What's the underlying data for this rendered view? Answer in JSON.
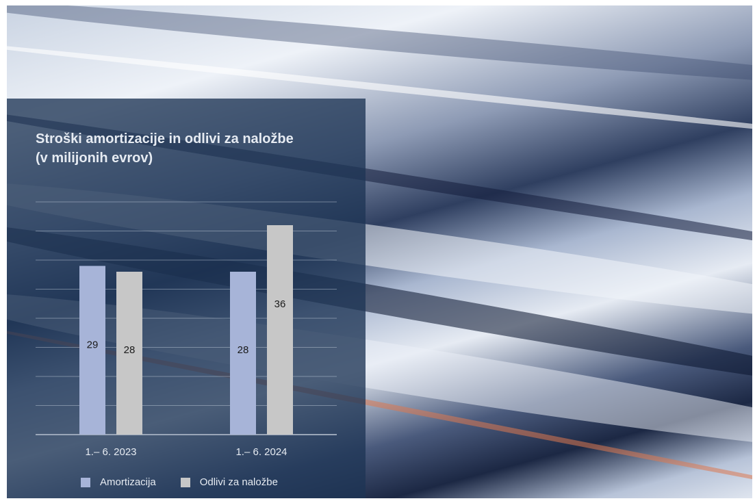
{
  "chart_data": {
    "type": "bar",
    "title": "Stroški amortizacije in odlivi za naložbe",
    "subtitle": "(v milijonih evrov)",
    "categories": [
      "1.– 6. 2023",
      "1.– 6. 2024"
    ],
    "series": [
      {
        "name": "Amortizacija",
        "values": [
          29,
          28
        ],
        "data_labels": [
          "29",
          "28"
        ],
        "color": "#a7b4d8"
      },
      {
        "name": "Odlivi za naložbe",
        "values": [
          28,
          36
        ],
        "data_labels": [
          "28",
          "36"
        ],
        "color": "#c7c7c7"
      }
    ],
    "ylim": [
      0,
      40
    ],
    "grid": true,
    "legend_position": "bottom"
  }
}
